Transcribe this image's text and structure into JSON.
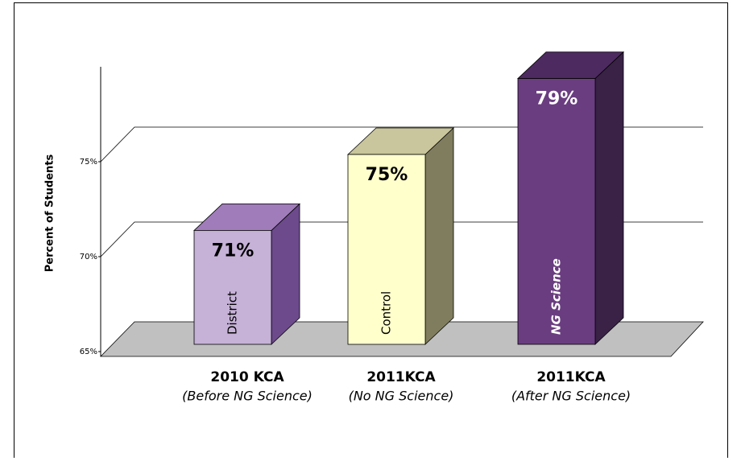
{
  "chart_data": {
    "type": "bar3d",
    "y_axis_label": "Percent of Students",
    "categories": [
      "2010 KCA",
      "2011KCA",
      "2011KCA"
    ],
    "subtitles": [
      "(Before NG Science)",
      "(No NG Science)",
      "(After NG Science)"
    ],
    "bar_labels": [
      "District",
      "Control",
      "NG Science"
    ],
    "values": [
      71,
      75,
      79
    ],
    "value_labels": [
      "71%",
      "75%",
      "79%"
    ],
    "colors": [
      "#c6b1d7",
      "#ffffcc",
      "#6a3d80"
    ],
    "top_colors": [
      "#a07cba",
      "#c9c59c",
      "#4d2a60"
    ],
    "side_colors": [
      "#6c4a8c",
      "#807d5f",
      "#392246"
    ],
    "ylim": [
      65,
      80
    ],
    "yticks": [
      {
        "value": 65,
        "label": "65%"
      },
      {
        "value": 70,
        "label": "70%"
      },
      {
        "value": 75,
        "label": "75%"
      }
    ],
    "grid": true
  }
}
